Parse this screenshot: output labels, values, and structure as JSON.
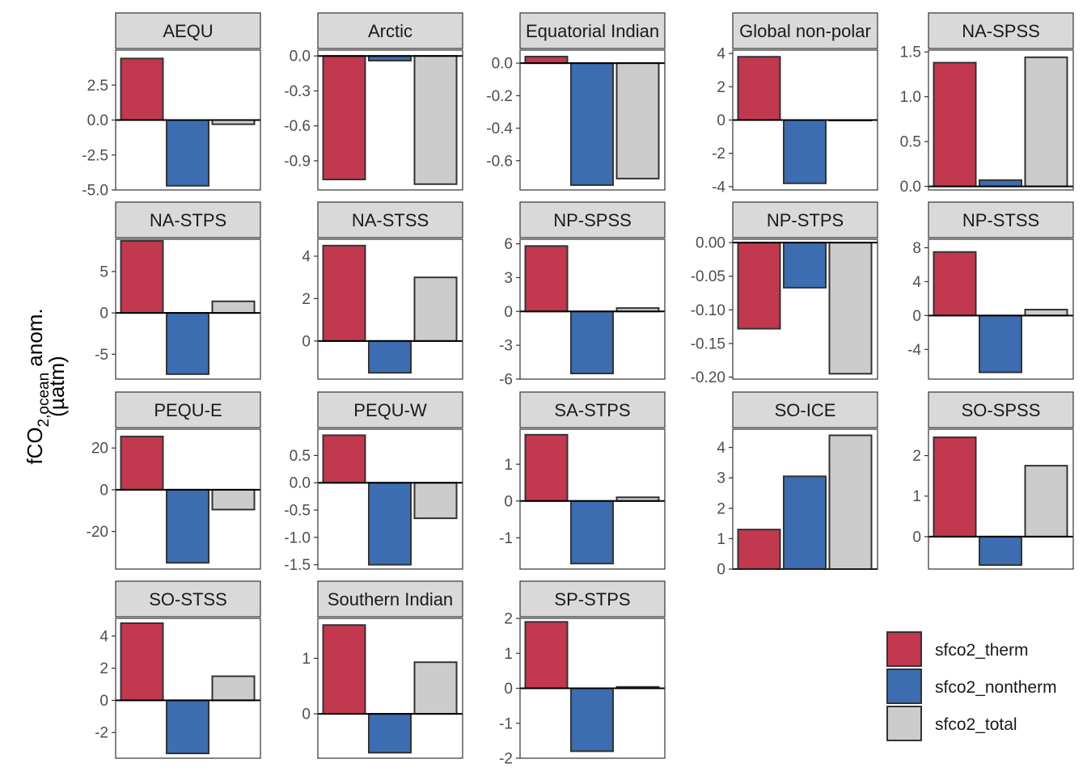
{
  "chart_data": {
    "type": "bar",
    "layout": "facet_wrap",
    "ylabel": {
      "main": "fCO",
      "sub": "2,ocean",
      "rest": " anom.",
      "line2": "(µatm)"
    },
    "categories": [
      "sfco2_therm",
      "sfco2_nontherm",
      "sfco2_total"
    ],
    "colors": {
      "sfco2_therm": "#C2384F",
      "sfco2_nontherm": "#3C6DB0",
      "sfco2_total": "#CCCCCC"
    },
    "legend": {
      "placement": "bottom-right",
      "items": [
        {
          "name": "sfco2_therm",
          "color": "#C2384F"
        },
        {
          "name": "sfco2_nontherm",
          "color": "#3C6DB0"
        },
        {
          "name": "sfco2_total",
          "color": "#CCCCCC"
        }
      ]
    },
    "panels": [
      {
        "title": "AEQU",
        "values": [
          4.4,
          -4.7,
          -0.3
        ],
        "ylim": [
          -5.0,
          5.0
        ],
        "ticks": [
          2.5,
          0.0,
          -2.5,
          -5.0
        ],
        "tick_labels": [
          "2.5",
          "0.0",
          "-2.5",
          "-5.0"
        ]
      },
      {
        "title": "Arctic",
        "values": [
          -1.06,
          -0.04,
          -1.1
        ],
        "ylim": [
          -1.15,
          0.05
        ],
        "ticks": [
          0.0,
          -0.3,
          -0.6,
          -0.9
        ],
        "tick_labels": [
          "0.0",
          "-0.3",
          "-0.6",
          "-0.9"
        ]
      },
      {
        "title": "Equatorial Indian",
        "values": [
          0.04,
          -0.75,
          -0.71
        ],
        "ylim": [
          -0.78,
          0.08
        ],
        "ticks": [
          0.0,
          -0.2,
          -0.4,
          -0.6
        ],
        "tick_labels": [
          "0.0",
          "-0.2",
          "-0.4",
          "-0.6"
        ]
      },
      {
        "title": "Global non-polar",
        "values": [
          3.8,
          -3.8,
          -0.02
        ],
        "ylim": [
          -4.2,
          4.2
        ],
        "ticks": [
          4,
          2,
          0,
          -2,
          -4
        ],
        "tick_labels": [
          "4",
          "2",
          "0",
          "-2",
          "-4"
        ]
      },
      {
        "title": "NA-SPSS",
        "values": [
          1.38,
          0.07,
          1.44
        ],
        "ylim": [
          -0.04,
          1.52
        ],
        "ticks": [
          1.5,
          1.0,
          0.5,
          0.0
        ],
        "tick_labels": [
          "1.5",
          "1.0",
          "0.5",
          "0.0"
        ]
      },
      {
        "title": "NA-STPS",
        "values": [
          8.7,
          -7.4,
          1.4
        ],
        "ylim": [
          -8.0,
          8.9
        ],
        "ticks": [
          5,
          0,
          -5
        ],
        "tick_labels": [
          "5",
          "0",
          "-5"
        ]
      },
      {
        "title": "NA-STSS",
        "values": [
          4.5,
          -1.5,
          3.0
        ],
        "ylim": [
          -1.8,
          4.8
        ],
        "ticks": [
          4,
          2,
          0
        ],
        "tick_labels": [
          "4",
          "2",
          "0"
        ]
      },
      {
        "title": "NP-SPSS",
        "values": [
          5.8,
          -5.5,
          0.3
        ],
        "ylim": [
          -6.0,
          6.4
        ],
        "ticks": [
          6,
          3,
          0,
          -3,
          -6
        ],
        "tick_labels": [
          "6",
          "3",
          "0",
          "-3",
          "-6"
        ]
      },
      {
        "title": "NP-STPS",
        "values": [
          -0.128,
          -0.067,
          -0.195
        ],
        "ylim": [
          -0.203,
          0.005
        ],
        "ticks": [
          0.0,
          -0.05,
          -0.1,
          -0.15,
          -0.2
        ],
        "tick_labels": [
          "0.00",
          "-0.05",
          "-0.10",
          "-0.15",
          "-0.20"
        ]
      },
      {
        "title": "NP-STSS",
        "values": [
          7.5,
          -6.7,
          0.7
        ],
        "ylim": [
          -7.5,
          9.0
        ],
        "ticks": [
          8,
          4,
          0,
          -4
        ],
        "tick_labels": [
          "8",
          "4",
          "0",
          "-4"
        ]
      },
      {
        "title": "PEQU-E",
        "values": [
          25.5,
          -35.0,
          -9.5
        ],
        "ylim": [
          -38.0,
          29.0
        ],
        "ticks": [
          20,
          0,
          -20
        ],
        "tick_labels": [
          "20",
          "0",
          "-20"
        ]
      },
      {
        "title": "PEQU-W",
        "values": [
          0.87,
          -1.5,
          -0.65
        ],
        "ylim": [
          -1.58,
          0.98
        ],
        "ticks": [
          0.5,
          0.0,
          -0.5,
          -1.0,
          -1.5
        ],
        "tick_labels": [
          "0.5",
          "0.0",
          "-0.5",
          "-1.0",
          "-1.5"
        ]
      },
      {
        "title": "SA-STPS",
        "values": [
          1.8,
          -1.7,
          0.1
        ],
        "ylim": [
          -1.85,
          1.95
        ],
        "ticks": [
          1,
          0,
          -1
        ],
        "tick_labels": [
          "1",
          "0",
          "-1"
        ]
      },
      {
        "title": "SO-ICE",
        "values": [
          1.3,
          3.05,
          4.4
        ],
        "ylim": [
          0.0,
          4.6
        ],
        "ticks": [
          4,
          3,
          2,
          1,
          0
        ],
        "tick_labels": [
          "4",
          "3",
          "2",
          "1",
          "0"
        ]
      },
      {
        "title": "SO-SPSS",
        "values": [
          2.45,
          -0.7,
          1.75
        ],
        "ylim": [
          -0.8,
          2.65
        ],
        "ticks": [
          2,
          1,
          0
        ],
        "tick_labels": [
          "2",
          "1",
          "0"
        ]
      },
      {
        "title": "SO-STSS",
        "values": [
          4.8,
          -3.3,
          1.5
        ],
        "ylim": [
          -3.6,
          5.1
        ],
        "ticks": [
          4,
          2,
          0,
          -2
        ],
        "tick_labels": [
          "4",
          "2",
          "0",
          "-2"
        ]
      },
      {
        "title": "Southern Indian",
        "values": [
          1.6,
          -0.7,
          0.93
        ],
        "ylim": [
          -0.8,
          1.72
        ],
        "ticks": [
          1,
          0
        ],
        "tick_labels": [
          "1",
          "0"
        ]
      },
      {
        "title": "SP-STPS",
        "values": [
          1.9,
          -1.8,
          0.04
        ],
        "ylim": [
          -2.0,
          2.0
        ],
        "ticks": [
          2,
          1,
          0,
          -1,
          -2
        ],
        "tick_labels": [
          "2",
          "1",
          "0",
          "-1",
          "-2"
        ]
      }
    ]
  }
}
